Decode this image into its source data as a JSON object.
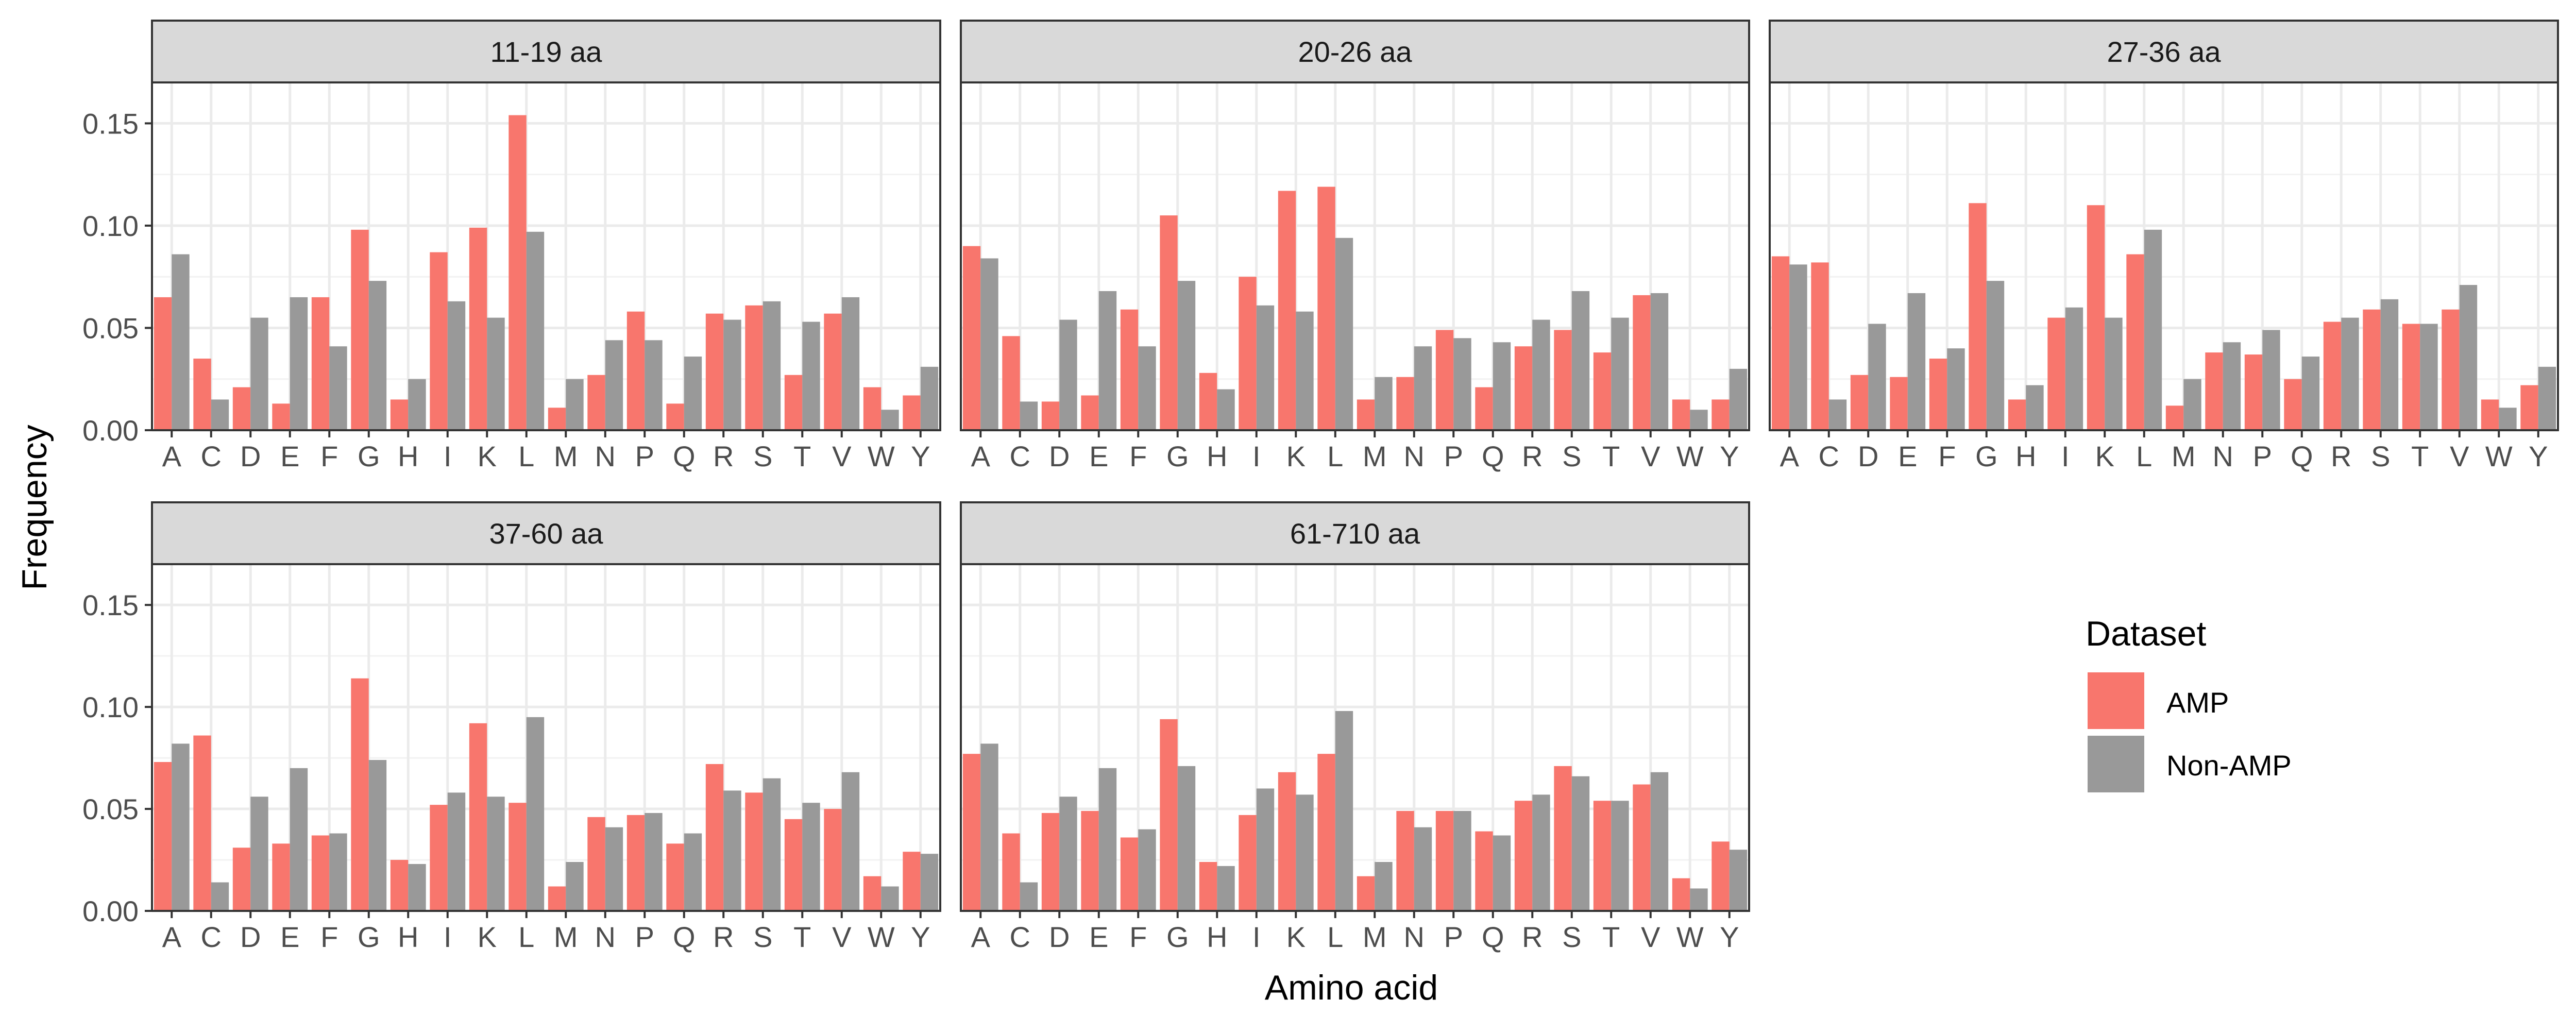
{
  "chart_data": {
    "type": "bar",
    "layout": "faceted grid, 2 rows x 3 columns, shared y axis",
    "ylabel": "Frequency",
    "xlabel": "Amino acid",
    "ylim": [
      0,
      0.17
    ],
    "yticks": [
      "0.00",
      "0.05",
      "0.10",
      "0.15"
    ],
    "grid": true,
    "categories": [
      "A",
      "C",
      "D",
      "E",
      "F",
      "G",
      "H",
      "I",
      "K",
      "L",
      "M",
      "N",
      "P",
      "Q",
      "R",
      "S",
      "T",
      "V",
      "W",
      "Y"
    ],
    "legend": {
      "title": "Dataset",
      "position": "right",
      "entries": [
        {
          "name": "AMP",
          "color": "#F8766D"
        },
        {
          "name": "Non-AMP",
          "color": "#999999"
        }
      ]
    },
    "panels": [
      {
        "title": "11-19 aa",
        "series": [
          {
            "name": "AMP",
            "values": [
              0.065,
              0.035,
              0.021,
              0.013,
              0.065,
              0.098,
              0.015,
              0.087,
              0.099,
              0.154,
              0.011,
              0.027,
              0.058,
              0.013,
              0.057,
              0.061,
              0.027,
              0.057,
              0.021,
              0.017
            ]
          },
          {
            "name": "Non-AMP",
            "values": [
              0.086,
              0.015,
              0.055,
              0.065,
              0.041,
              0.073,
              0.025,
              0.063,
              0.055,
              0.097,
              0.025,
              0.044,
              0.044,
              0.036,
              0.054,
              0.063,
              0.053,
              0.065,
              0.01,
              0.031
            ]
          }
        ]
      },
      {
        "title": "20-26 aa",
        "series": [
          {
            "name": "AMP",
            "values": [
              0.09,
              0.046,
              0.014,
              0.017,
              0.059,
              0.105,
              0.028,
              0.075,
              0.117,
              0.119,
              0.015,
              0.026,
              0.049,
              0.021,
              0.041,
              0.049,
              0.038,
              0.066,
              0.015,
              0.015
            ]
          },
          {
            "name": "Non-AMP",
            "values": [
              0.084,
              0.014,
              0.054,
              0.068,
              0.041,
              0.073,
              0.02,
              0.061,
              0.058,
              0.094,
              0.026,
              0.041,
              0.045,
              0.043,
              0.054,
              0.068,
              0.055,
              0.067,
              0.01,
              0.03
            ]
          }
        ]
      },
      {
        "title": "27-36 aa",
        "series": [
          {
            "name": "AMP",
            "values": [
              0.085,
              0.082,
              0.027,
              0.026,
              0.035,
              0.111,
              0.015,
              0.055,
              0.11,
              0.086,
              0.012,
              0.038,
              0.037,
              0.025,
              0.053,
              0.059,
              0.052,
              0.059,
              0.015,
              0.022
            ]
          },
          {
            "name": "Non-AMP",
            "values": [
              0.081,
              0.015,
              0.052,
              0.067,
              0.04,
              0.073,
              0.022,
              0.06,
              0.055,
              0.098,
              0.025,
              0.043,
              0.049,
              0.036,
              0.055,
              0.064,
              0.052,
              0.071,
              0.011,
              0.031
            ]
          }
        ]
      },
      {
        "title": "37-60 aa",
        "series": [
          {
            "name": "AMP",
            "values": [
              0.073,
              0.086,
              0.031,
              0.033,
              0.037,
              0.114,
              0.025,
              0.052,
              0.092,
              0.053,
              0.012,
              0.046,
              0.047,
              0.033,
              0.072,
              0.058,
              0.045,
              0.05,
              0.017,
              0.029
            ]
          },
          {
            "name": "Non-AMP",
            "values": [
              0.082,
              0.014,
              0.056,
              0.07,
              0.038,
              0.074,
              0.023,
              0.058,
              0.056,
              0.095,
              0.024,
              0.041,
              0.048,
              0.038,
              0.059,
              0.065,
              0.053,
              0.068,
              0.012,
              0.028
            ]
          }
        ]
      },
      {
        "title": "61-710 aa",
        "series": [
          {
            "name": "AMP",
            "values": [
              0.077,
              0.038,
              0.048,
              0.049,
              0.036,
              0.094,
              0.024,
              0.047,
              0.068,
              0.077,
              0.017,
              0.049,
              0.049,
              0.039,
              0.054,
              0.071,
              0.054,
              0.062,
              0.016,
              0.034
            ]
          },
          {
            "name": "Non-AMP",
            "values": [
              0.082,
              0.014,
              0.056,
              0.07,
              0.04,
              0.071,
              0.022,
              0.06,
              0.057,
              0.098,
              0.024,
              0.041,
              0.049,
              0.037,
              0.057,
              0.066,
              0.054,
              0.068,
              0.011,
              0.03
            ]
          }
        ]
      }
    ]
  }
}
